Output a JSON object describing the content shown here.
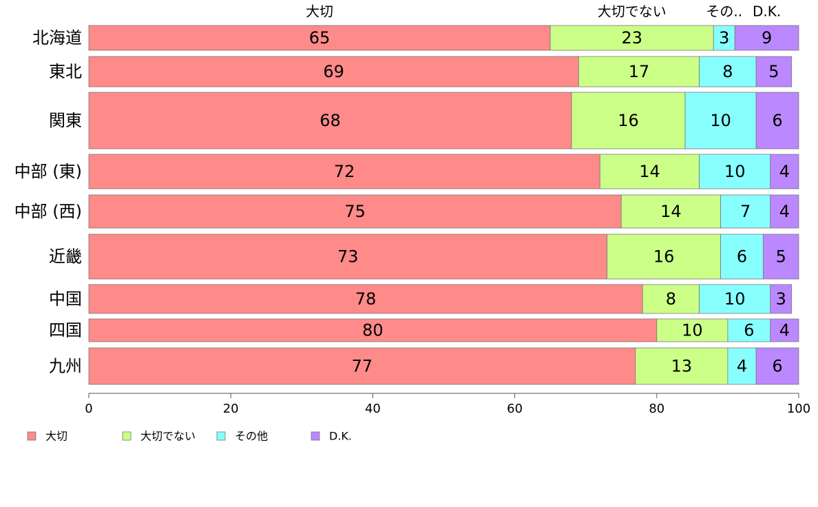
{
  "chart_data": {
    "type": "bar",
    "orientation": "horizontal",
    "stacked": true,
    "categories": [
      "北海道",
      "東北",
      "関東",
      "中部 (東)",
      "中部 (西)",
      "近畿",
      "中国",
      "四国",
      "九州"
    ],
    "series": [
      {
        "name": "大切",
        "color": "#ff8a8a",
        "values": [
          65,
          69,
          68,
          72,
          75,
          73,
          78,
          80,
          77
        ]
      },
      {
        "name": "大切でない",
        "color": "#ccff88",
        "values": [
          23,
          17,
          16,
          14,
          14,
          16,
          8,
          10,
          13
        ]
      },
      {
        "name": "その他",
        "color": "#88ffff",
        "values": [
          3,
          8,
          10,
          10,
          7,
          6,
          10,
          6,
          4
        ]
      },
      {
        "name": "D.K.",
        "color": "#bb88ff",
        "values": [
          9,
          5,
          6,
          4,
          4,
          5,
          3,
          4,
          6
        ]
      }
    ],
    "top_labels": [
      "大切",
      "大切でない",
      "その..",
      "D.K."
    ],
    "xlim": [
      0,
      100
    ],
    "xticks": [
      "0",
      "20",
      "40",
      "60",
      "80",
      "100"
    ],
    "legend_position": "bottom-left",
    "grid": false
  }
}
